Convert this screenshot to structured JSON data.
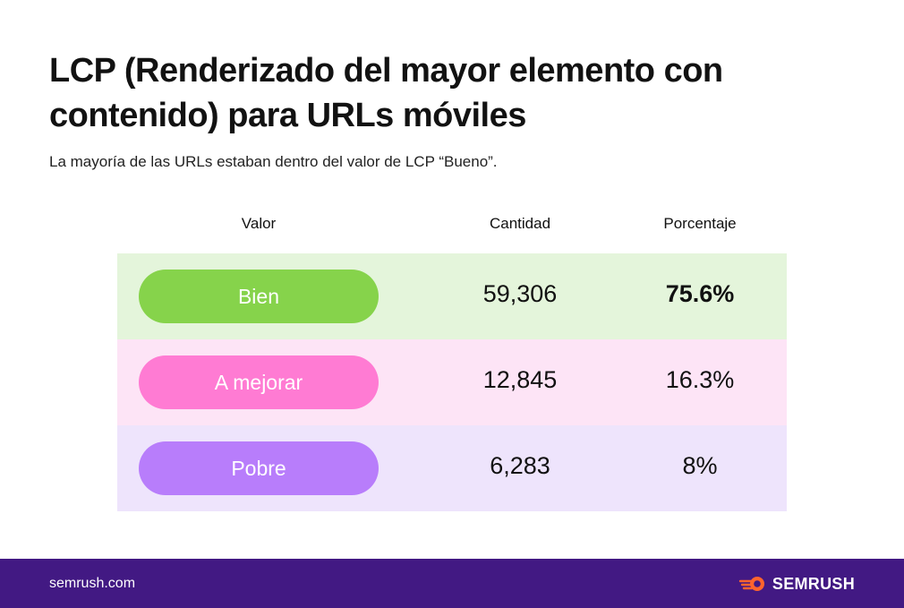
{
  "title": "LCP (Renderizado del mayor elemento con contenido) para URLs móviles",
  "subtitle": "La mayoría de las URLs estaban dentro del valor de LCP “Bueno”.",
  "chart_data": {
    "type": "table",
    "columns": [
      "Valor",
      "Cantidad",
      "Porcentaje"
    ],
    "rows": [
      {
        "valor": "Bien",
        "cantidad": "59,306",
        "porcentaje": "75.6%",
        "pill_color": "#86D34B",
        "row_bg": "#E4F5DB",
        "emphasis": true
      },
      {
        "valor": "A mejorar",
        "cantidad": "12,845",
        "porcentaje": "16.3%",
        "pill_color": "#FF7BD3",
        "row_bg": "#FDE4F6",
        "emphasis": false
      },
      {
        "valor": "Pobre",
        "cantidad": "6,283",
        "porcentaje": "8%",
        "pill_color": "#B87DFB",
        "row_bg": "#EEE4FC",
        "emphasis": false
      }
    ]
  },
  "footer": {
    "domain": "semrush.com",
    "logo_text": "SEMRUSH",
    "logo_icon": "semrush-fireball-icon",
    "background": "#421983",
    "logo_accent": "#FF642D"
  }
}
